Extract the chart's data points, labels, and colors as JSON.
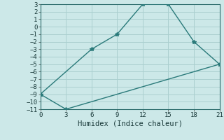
{
  "title": "",
  "xlabel": "Humidex (Indice chaleur)",
  "bg_color": "#cce8e8",
  "grid_color": "#aacfcf",
  "line_color": "#2a7a7a",
  "line1_x": [
    0,
    6,
    9,
    12,
    15,
    18,
    21
  ],
  "line1_y": [
    -9,
    -3,
    -1,
    3,
    3,
    -2,
    -5
  ],
  "line2_x": [
    0,
    3,
    21
  ],
  "line2_y": [
    -9,
    -11,
    -5
  ],
  "xlim": [
    0,
    21
  ],
  "ylim": [
    -11,
    3
  ],
  "xticks": [
    0,
    3,
    6,
    9,
    12,
    15,
    18,
    21
  ],
  "yticks": [
    -11,
    -10,
    -9,
    -8,
    -7,
    -6,
    -5,
    -4,
    -3,
    -2,
    -1,
    0,
    1,
    2,
    3
  ],
  "marker": "*",
  "markersize": 4,
  "linewidth": 1.0,
  "tick_fontsize": 6.5,
  "xlabel_fontsize": 7.5
}
